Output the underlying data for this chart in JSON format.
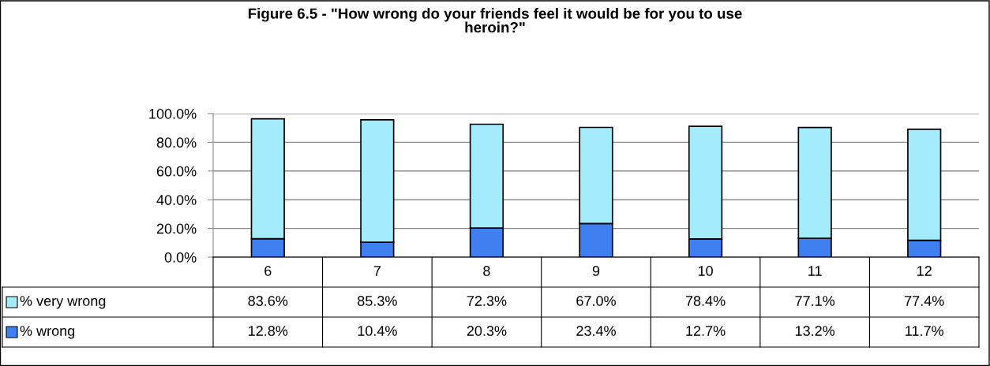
{
  "chart_data": {
    "type": "bar",
    "title": "Figure 6.5 - \"How wrong do your friends feel it would be for you to use\nheroin?\"",
    "categories": [
      "6",
      "7",
      "8",
      "9",
      "10",
      "11",
      "12"
    ],
    "stacked": true,
    "series": [
      {
        "name": "% wrong",
        "color": "#3f7fef",
        "values": [
          12.8,
          10.4,
          20.3,
          23.4,
          12.7,
          13.2,
          11.7
        ],
        "value_labels": [
          "12.8%",
          "10.4%",
          "20.3%",
          "23.4%",
          "12.7%",
          "13.2%",
          "11.7%"
        ]
      },
      {
        "name": "% very wrong",
        "color": "#a4ebfb",
        "values": [
          83.6,
          85.3,
          72.3,
          67.0,
          78.4,
          77.1,
          77.4
        ],
        "value_labels": [
          "83.6%",
          "85.3%",
          "72.3%",
          "67.0%",
          "78.4%",
          "77.1%",
          "77.4%"
        ]
      }
    ],
    "ylim": [
      0,
      100
    ],
    "yticks": [
      {
        "value": 0,
        "label": "0.0%"
      },
      {
        "value": 20,
        "label": "20.0%"
      },
      {
        "value": 40,
        "label": "40.0%"
      },
      {
        "value": 60,
        "label": "60.0%"
      },
      {
        "value": 80,
        "label": "80.0%"
      },
      {
        "value": 100,
        "label": "100.0%"
      }
    ],
    "grid": "y",
    "legend": "bottom left",
    "data_labels": true
  }
}
